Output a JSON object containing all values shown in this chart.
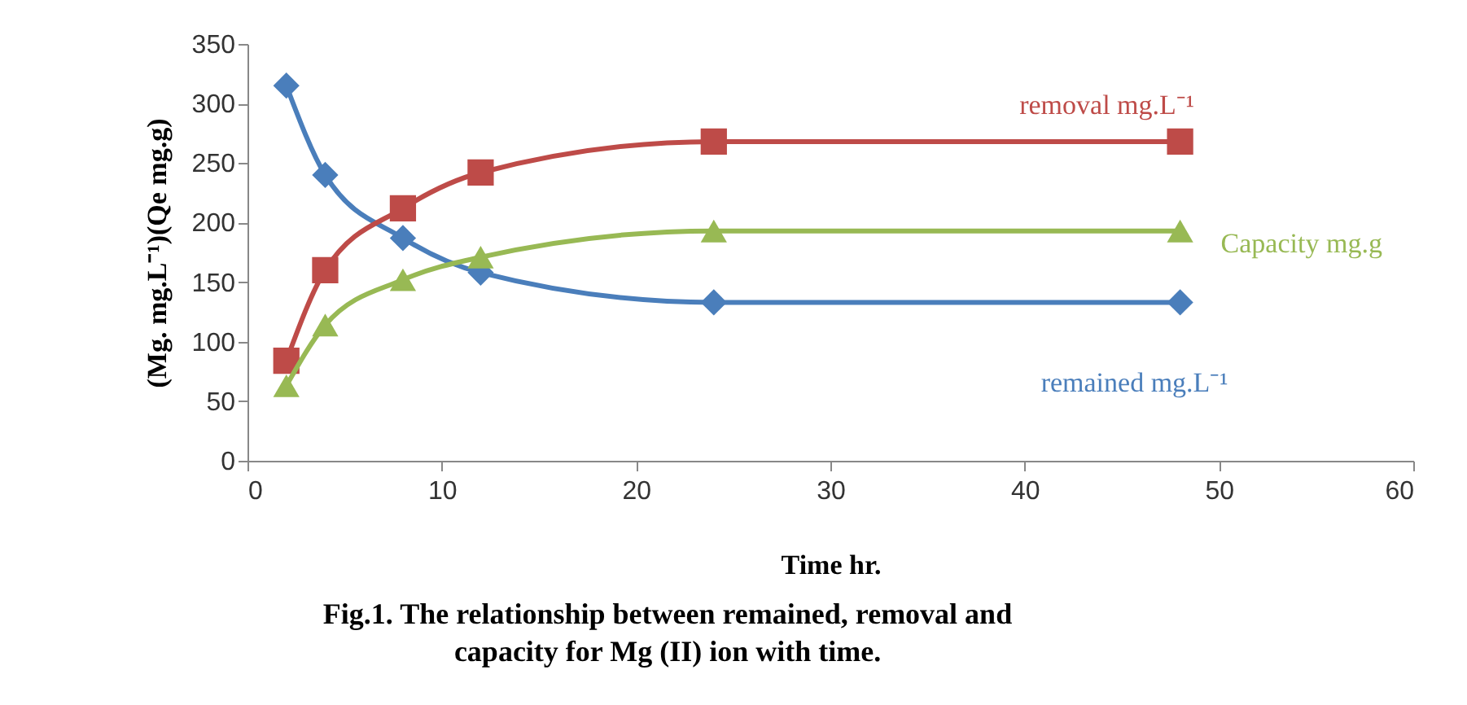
{
  "chart_data": {
    "type": "line",
    "title": "Fig.1. The relationship between remained, removal and\ncapacity for Mg (II) ion with time.",
    "xlabel": "Time  hr.",
    "ylabel": "(Mg. mg.L⁻¹)(Qe mg.g)",
    "x": [
      2,
      4,
      8,
      12,
      24,
      48
    ],
    "series": [
      {
        "name": "remained mg.L⁻¹",
        "color": "#4a7ebb",
        "marker": "diamond",
        "values": [
          315,
          240,
          187,
          158,
          133,
          133
        ]
      },
      {
        "name": "removal mg.L⁻¹",
        "color": "#be4b48",
        "marker": "square",
        "values": [
          84,
          160,
          212,
          242,
          268,
          268
        ]
      },
      {
        "name": "Capacity  mg.g",
        "color": "#98b954",
        "marker": "triangle",
        "values": [
          63,
          114,
          152,
          171,
          193,
          193
        ]
      }
    ],
    "xlim": [
      0,
      60
    ],
    "xticks": [
      0,
      10,
      20,
      30,
      40,
      50,
      60
    ],
    "ylim": [
      0,
      350
    ],
    "yticks": [
      0,
      50,
      100,
      150,
      200,
      250,
      300,
      350
    ],
    "grid": false
  }
}
